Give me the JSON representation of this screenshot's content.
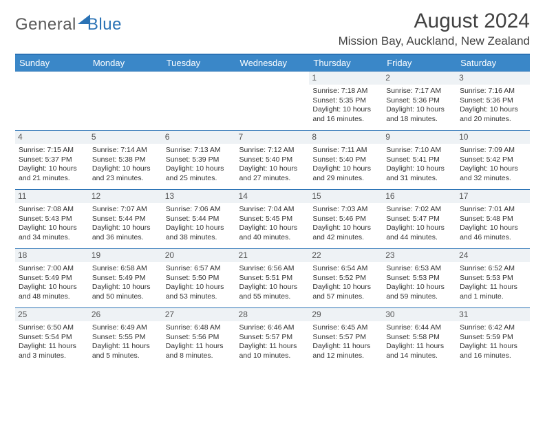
{
  "branding": {
    "logo_general": "General",
    "logo_blue": "Blue"
  },
  "header": {
    "month_title": "August 2024",
    "location": "Mission Bay, Auckland, New Zealand"
  },
  "calendar": {
    "day_headers": [
      "Sunday",
      "Monday",
      "Tuesday",
      "Wednesday",
      "Thursday",
      "Friday",
      "Saturday"
    ],
    "colors": {
      "header_bg": "#3a87c8",
      "header_text": "#ffffff",
      "border": "#2a72b5",
      "daynum_bg": "#eef2f5",
      "text": "#333333"
    },
    "leading_blanks": 4,
    "days": [
      {
        "n": "1",
        "sunrise": "7:18 AM",
        "sunset": "5:35 PM",
        "daylight": "10 hours and 16 minutes."
      },
      {
        "n": "2",
        "sunrise": "7:17 AM",
        "sunset": "5:36 PM",
        "daylight": "10 hours and 18 minutes."
      },
      {
        "n": "3",
        "sunrise": "7:16 AM",
        "sunset": "5:36 PM",
        "daylight": "10 hours and 20 minutes."
      },
      {
        "n": "4",
        "sunrise": "7:15 AM",
        "sunset": "5:37 PM",
        "daylight": "10 hours and 21 minutes."
      },
      {
        "n": "5",
        "sunrise": "7:14 AM",
        "sunset": "5:38 PM",
        "daylight": "10 hours and 23 minutes."
      },
      {
        "n": "6",
        "sunrise": "7:13 AM",
        "sunset": "5:39 PM",
        "daylight": "10 hours and 25 minutes."
      },
      {
        "n": "7",
        "sunrise": "7:12 AM",
        "sunset": "5:40 PM",
        "daylight": "10 hours and 27 minutes."
      },
      {
        "n": "8",
        "sunrise": "7:11 AM",
        "sunset": "5:40 PM",
        "daylight": "10 hours and 29 minutes."
      },
      {
        "n": "9",
        "sunrise": "7:10 AM",
        "sunset": "5:41 PM",
        "daylight": "10 hours and 31 minutes."
      },
      {
        "n": "10",
        "sunrise": "7:09 AM",
        "sunset": "5:42 PM",
        "daylight": "10 hours and 32 minutes."
      },
      {
        "n": "11",
        "sunrise": "7:08 AM",
        "sunset": "5:43 PM",
        "daylight": "10 hours and 34 minutes."
      },
      {
        "n": "12",
        "sunrise": "7:07 AM",
        "sunset": "5:44 PM",
        "daylight": "10 hours and 36 minutes."
      },
      {
        "n": "13",
        "sunrise": "7:06 AM",
        "sunset": "5:44 PM",
        "daylight": "10 hours and 38 minutes."
      },
      {
        "n": "14",
        "sunrise": "7:04 AM",
        "sunset": "5:45 PM",
        "daylight": "10 hours and 40 minutes."
      },
      {
        "n": "15",
        "sunrise": "7:03 AM",
        "sunset": "5:46 PM",
        "daylight": "10 hours and 42 minutes."
      },
      {
        "n": "16",
        "sunrise": "7:02 AM",
        "sunset": "5:47 PM",
        "daylight": "10 hours and 44 minutes."
      },
      {
        "n": "17",
        "sunrise": "7:01 AM",
        "sunset": "5:48 PM",
        "daylight": "10 hours and 46 minutes."
      },
      {
        "n": "18",
        "sunrise": "7:00 AM",
        "sunset": "5:49 PM",
        "daylight": "10 hours and 48 minutes."
      },
      {
        "n": "19",
        "sunrise": "6:58 AM",
        "sunset": "5:49 PM",
        "daylight": "10 hours and 50 minutes."
      },
      {
        "n": "20",
        "sunrise": "6:57 AM",
        "sunset": "5:50 PM",
        "daylight": "10 hours and 53 minutes."
      },
      {
        "n": "21",
        "sunrise": "6:56 AM",
        "sunset": "5:51 PM",
        "daylight": "10 hours and 55 minutes."
      },
      {
        "n": "22",
        "sunrise": "6:54 AM",
        "sunset": "5:52 PM",
        "daylight": "10 hours and 57 minutes."
      },
      {
        "n": "23",
        "sunrise": "6:53 AM",
        "sunset": "5:53 PM",
        "daylight": "10 hours and 59 minutes."
      },
      {
        "n": "24",
        "sunrise": "6:52 AM",
        "sunset": "5:53 PM",
        "daylight": "11 hours and 1 minute."
      },
      {
        "n": "25",
        "sunrise": "6:50 AM",
        "sunset": "5:54 PM",
        "daylight": "11 hours and 3 minutes."
      },
      {
        "n": "26",
        "sunrise": "6:49 AM",
        "sunset": "5:55 PM",
        "daylight": "11 hours and 5 minutes."
      },
      {
        "n": "27",
        "sunrise": "6:48 AM",
        "sunset": "5:56 PM",
        "daylight": "11 hours and 8 minutes."
      },
      {
        "n": "28",
        "sunrise": "6:46 AM",
        "sunset": "5:57 PM",
        "daylight": "11 hours and 10 minutes."
      },
      {
        "n": "29",
        "sunrise": "6:45 AM",
        "sunset": "5:57 PM",
        "daylight": "11 hours and 12 minutes."
      },
      {
        "n": "30",
        "sunrise": "6:44 AM",
        "sunset": "5:58 PM",
        "daylight": "11 hours and 14 minutes."
      },
      {
        "n": "31",
        "sunrise": "6:42 AM",
        "sunset": "5:59 PM",
        "daylight": "11 hours and 16 minutes."
      }
    ],
    "labels": {
      "sunrise_prefix": "Sunrise: ",
      "sunset_prefix": "Sunset: ",
      "daylight_prefix": "Daylight: "
    }
  }
}
